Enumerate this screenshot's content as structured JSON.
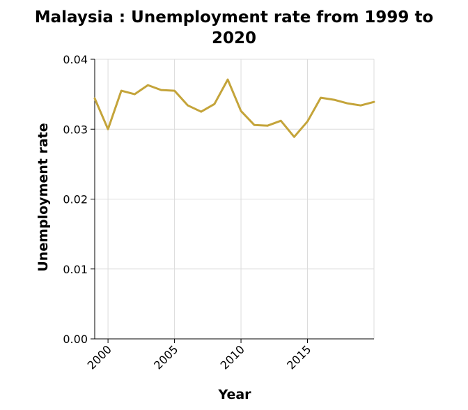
{
  "chart_data": {
    "type": "line",
    "title_lines": [
      "Malaysia : Unemployment rate from 1999 to",
      "2020"
    ],
    "xlabel": "Year",
    "ylabel": "Unemployment rate",
    "xlim": [
      1999,
      2020
    ],
    "ylim": [
      0,
      0.04
    ],
    "x_ticks": [
      2000,
      2005,
      2010,
      2015
    ],
    "x_tick_labels": [
      "2000",
      "2005",
      "2010",
      "2015"
    ],
    "y_ticks": [
      0,
      0.01,
      0.02,
      0.03,
      0.04
    ],
    "y_tick_labels": [
      "0.00",
      "0.01",
      "0.02",
      "0.03",
      "0.04"
    ],
    "grid": true,
    "colors": {
      "line": "#c4a43a",
      "grid": "#dcdcdc",
      "axis": "#000000"
    },
    "x": [
      1999,
      2000,
      2001,
      2002,
      2003,
      2004,
      2005,
      2006,
      2007,
      2008,
      2009,
      2010,
      2011,
      2012,
      2013,
      2014,
      2015,
      2016,
      2017,
      2018,
      2019,
      2020
    ],
    "series": [
      {
        "values": [
          0.0344,
          0.03,
          0.0355,
          0.035,
          0.0363,
          0.0356,
          0.0355,
          0.0334,
          0.0325,
          0.0336,
          0.0371,
          0.0326,
          0.0306,
          0.0305,
          0.0312,
          0.0289,
          0.0311,
          0.0345,
          0.0342,
          0.0337,
          0.0334,
          0.0339
        ]
      }
    ]
  }
}
